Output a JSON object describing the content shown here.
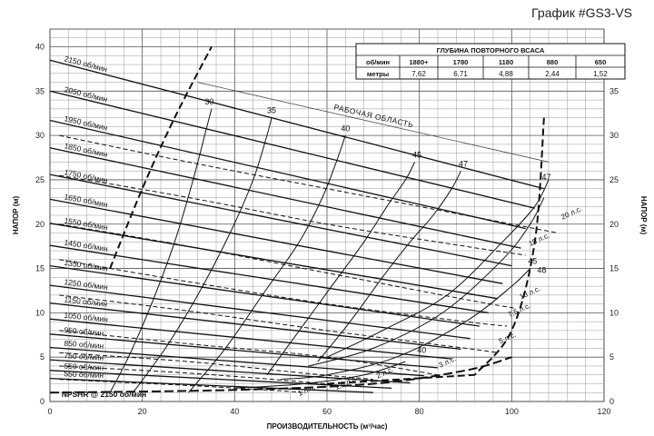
{
  "header": {
    "title": "График #GS3-VS"
  },
  "chart_data": {
    "type": "line",
    "xlabel": "ПРОИЗВОДИТЕЛЬНОСТЬ (м³/час)",
    "ylabel_left": "НАПОР (м)",
    "ylabel_right": "НАПОР (м)",
    "xlim": [
      0,
      120
    ],
    "ylim": [
      0,
      42
    ],
    "x_ticks": [
      0,
      20,
      40,
      60,
      80,
      100,
      120
    ],
    "y_ticks": [
      0,
      5,
      10,
      15,
      20,
      25,
      30,
      35,
      40
    ],
    "grid": true,
    "speed_curves": [
      {
        "label": "2150 об/мин",
        "points": [
          [
            0,
            38.5
          ],
          [
            107,
            24
          ]
        ]
      },
      {
        "label": "2050 об/мин",
        "points": [
          [
            0,
            35
          ],
          [
            105,
            21.8
          ]
        ]
      },
      {
        "label": "1950 об/мин",
        "points": [
          [
            0,
            31.7
          ],
          [
            103,
            19.5
          ]
        ]
      },
      {
        "label": "1850 об/мин",
        "points": [
          [
            0,
            28.6
          ],
          [
            102,
            17.3
          ]
        ]
      },
      {
        "label": "1750 об/мин",
        "points": [
          [
            0,
            25.6
          ],
          [
            100,
            15.3
          ]
        ]
      },
      {
        "label": "1650 об/мин",
        "points": [
          [
            0,
            22.8
          ],
          [
            98,
            13.3
          ]
        ]
      },
      {
        "label": "1550 об/мин",
        "points": [
          [
            0,
            20.1
          ],
          [
            97,
            11.6
          ]
        ]
      },
      {
        "label": "1450 об/мин",
        "points": [
          [
            0,
            17.6
          ],
          [
            95,
            10
          ]
        ]
      },
      {
        "label": "1350 об/мин",
        "points": [
          [
            0,
            15.3
          ],
          [
            93,
            8.5
          ]
        ]
      },
      {
        "label": "1250 об/мин",
        "points": [
          [
            0,
            13.1
          ],
          [
            91,
            7.1
          ]
        ]
      },
      {
        "label": "1150 об/мин",
        "points": [
          [
            0,
            11.1
          ],
          [
            89,
            5.9
          ]
        ]
      },
      {
        "label": "1050 об/мин",
        "points": [
          [
            0,
            9.3
          ],
          [
            87,
            4.8
          ]
        ]
      },
      {
        "label": "950 об/мин",
        "points": [
          [
            0,
            7.6
          ],
          [
            84,
            3.8
          ]
        ]
      },
      {
        "label": "850 об/мин",
        "points": [
          [
            0,
            6.1
          ],
          [
            81,
            2.9
          ]
        ]
      },
      {
        "label": "750 об/мин",
        "points": [
          [
            0,
            4.7
          ],
          [
            78,
            2.1
          ]
        ]
      },
      {
        "label": "650 об/мин",
        "points": [
          [
            0,
            3.5
          ],
          [
            74,
            1.5
          ]
        ]
      },
      {
        "label": "550 об/мин",
        "points": [
          [
            0,
            2.6
          ],
          [
            70,
            1
          ]
        ]
      }
    ],
    "efficiency_curves": [
      {
        "label": "30",
        "points": [
          [
            13,
            1
          ],
          [
            17,
            5
          ],
          [
            22,
            11
          ],
          [
            27,
            18
          ],
          [
            31,
            25
          ],
          [
            34,
            31
          ],
          [
            35,
            33
          ]
        ]
      },
      {
        "label": "35",
        "points": [
          [
            18,
            1
          ],
          [
            25,
            6
          ],
          [
            32,
            12
          ],
          [
            39,
            19
          ],
          [
            44,
            25
          ],
          [
            47,
            30
          ],
          [
            48,
            32
          ]
        ]
      },
      {
        "label": "40",
        "points": [
          [
            30,
            1
          ],
          [
            38,
            6
          ],
          [
            46,
            12
          ],
          [
            54,
            18
          ],
          [
            59,
            23
          ],
          [
            62,
            27
          ],
          [
            64,
            30
          ]
        ]
      },
      {
        "label": "45",
        "points": [
          [
            47,
            3
          ],
          [
            54,
            8
          ],
          [
            61,
            13
          ],
          [
            68,
            18
          ],
          [
            73,
            22
          ],
          [
            77,
            25
          ],
          [
            79,
            27
          ]
        ]
      },
      {
        "label": "47",
        "points": [
          [
            58,
            4.5
          ],
          [
            65,
            9
          ],
          [
            72,
            14
          ],
          [
            78,
            18
          ],
          [
            83,
            21
          ],
          [
            87,
            24
          ],
          [
            89,
            26
          ]
        ]
      },
      {
        "label": "45",
        "points": [
          [
            50,
            2.5
          ],
          [
            60,
            3
          ],
          [
            75,
            5
          ],
          [
            90,
            9
          ],
          [
            100,
            13
          ],
          [
            104,
            15
          ]
        ]
      },
      {
        "label": "47",
        "points": [
          [
            56,
            4
          ],
          [
            70,
            6
          ],
          [
            85,
            10
          ],
          [
            98,
            16
          ],
          [
            104,
            20
          ],
          [
            107,
            23
          ]
        ]
      },
      {
        "label": "48",
        "points": [
          [
            60,
            5
          ],
          [
            72,
            8
          ],
          [
            86,
            12
          ],
          [
            98,
            18
          ],
          [
            105,
            22
          ],
          [
            108,
            25
          ]
        ]
      },
      {
        "label": "40",
        "points": [
          [
            40,
            1.5
          ],
          [
            55,
            2
          ],
          [
            68,
            3
          ],
          [
            77,
            4.5
          ]
        ]
      }
    ],
    "efficiency_labels": [
      {
        "text": "30",
        "x": 34.5,
        "y": 33.5
      },
      {
        "text": "35",
        "x": 48,
        "y": 32.5
      },
      {
        "text": "40",
        "x": 64,
        "y": 30.5
      },
      {
        "text": "45",
        "x": 79.5,
        "y": 27.5
      },
      {
        "text": "47",
        "x": 89.5,
        "y": 26.5
      },
      {
        "text": "47",
        "x": 107.5,
        "y": 25
      },
      {
        "text": "45",
        "x": 104.5,
        "y": 15.5
      },
      {
        "text": "48",
        "x": 106.5,
        "y": 14.5
      },
      {
        "text": "40",
        "x": 80.5,
        "y": 5.5
      }
    ],
    "hp_curves": [
      {
        "label": "20 л.с.",
        "points": [
          [
            2,
            30
          ],
          [
            30,
            27
          ],
          [
            60,
            24
          ],
          [
            90,
            21
          ],
          [
            110,
            19
          ]
        ]
      },
      {
        "label": "15 л.с.",
        "points": [
          [
            2,
            25.5
          ],
          [
            30,
            23
          ],
          [
            60,
            20
          ],
          [
            90,
            17.5
          ],
          [
            103,
            16.5
          ]
        ]
      },
      {
        "label": "10 л.с.",
        "points": [
          [
            2,
            20
          ],
          [
            30,
            17.5
          ],
          [
            60,
            14.5
          ],
          [
            90,
            11.5
          ],
          [
            101,
            10.5
          ]
        ]
      },
      {
        "label": "7,5 л.с.",
        "points": [
          [
            2,
            16
          ],
          [
            30,
            13.5
          ],
          [
            60,
            11
          ],
          [
            90,
            9
          ],
          [
            99,
            8.5
          ]
        ]
      },
      {
        "label": "5 л.с.",
        "points": [
          [
            2,
            12
          ],
          [
            30,
            10.2
          ],
          [
            60,
            8
          ],
          [
            90,
            6
          ],
          [
            97,
            5.5
          ]
        ]
      },
      {
        "label": "3 л.с.",
        "points": [
          [
            2,
            8
          ],
          [
            30,
            6.5
          ],
          [
            60,
            5
          ],
          [
            84,
            3
          ]
        ]
      },
      {
        "label": "2 л.с.",
        "points": [
          [
            2,
            5.5
          ],
          [
            30,
            4.5
          ],
          [
            55,
            3.2
          ],
          [
            70,
            2.5
          ]
        ]
      },
      {
        "label": "1,5 л.с.",
        "points": [
          [
            2,
            4
          ],
          [
            30,
            3.2
          ],
          [
            55,
            2.2
          ],
          [
            63,
            1.8
          ]
        ]
      },
      {
        "label": "1 л.с.",
        "points": [
          [
            2,
            2.5
          ],
          [
            30,
            1.8
          ],
          [
            50,
            1.2
          ],
          [
            55,
            1
          ]
        ]
      }
    ],
    "hp_labels": [
      {
        "text": "20 л.с.",
        "x": 111,
        "y": 20.5
      },
      {
        "text": "15 л.с.",
        "x": 104,
        "y": 17.5
      },
      {
        "text": "10 л.с.",
        "x": 102,
        "y": 11.5
      },
      {
        "text": "7,5 л.с.",
        "x": 99.5,
        "y": 9.5
      },
      {
        "text": "5 л.с.",
        "x": 97.5,
        "y": 6.5
      },
      {
        "text": "3 л.с.",
        "x": 84.5,
        "y": 3.8
      },
      {
        "text": "2 л.с.",
        "x": 71,
        "y": 2.6
      },
      {
        "text": "1,5 л.с.",
        "x": 62,
        "y": 1.3
      },
      {
        "text": "1 л.с.",
        "x": 54,
        "y": 0.6
      }
    ],
    "operating_area": {
      "label": "РАБОЧАЯ ОБЛАСТЬ",
      "left_boundary": [
        [
          13,
          15
        ],
        [
          20,
          24
        ],
        [
          27,
          32
        ],
        [
          35,
          40
        ]
      ],
      "top_boundary": [
        [
          32,
          36
        ],
        [
          108,
          27
        ]
      ],
      "right_boundary": [
        [
          107,
          32
        ],
        [
          105,
          18
        ],
        [
          100,
          8
        ],
        [
          92,
          3
        ]
      ],
      "bottom_boundary": [
        [
          60,
          2
        ],
        [
          92,
          3
        ]
      ]
    },
    "npshr_label": "NPSHR @ 2150 об/мин",
    "npshr_curve": [
      [
        0,
        1
      ],
      [
        40,
        1.3
      ],
      [
        70,
        2
      ],
      [
        90,
        3.5
      ],
      [
        100,
        5
      ]
    ],
    "repriming_table": {
      "title": "ГЛУБИНА ПОВТОРНОГО ВСАСА",
      "rows": [
        {
          "head": "об/мин",
          "values": [
            "1880+",
            "1780",
            "1180",
            "880",
            "650"
          ]
        },
        {
          "head": "метры",
          "values": [
            "7,62",
            "6,71",
            "4,88",
            "2,44",
            "1,52"
          ]
        }
      ]
    }
  }
}
